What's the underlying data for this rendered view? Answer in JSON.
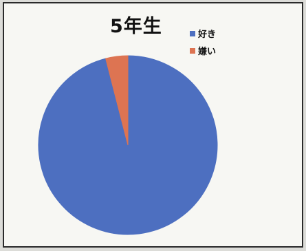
{
  "chart_data": {
    "type": "pie",
    "title": "5年生",
    "legend_position": "top-right",
    "slices": [
      {
        "label": "好き",
        "value": 96,
        "color": "#4d6fc0"
      },
      {
        "label": "嫌い",
        "value": 4,
        "color": "#dd7452"
      }
    ]
  }
}
